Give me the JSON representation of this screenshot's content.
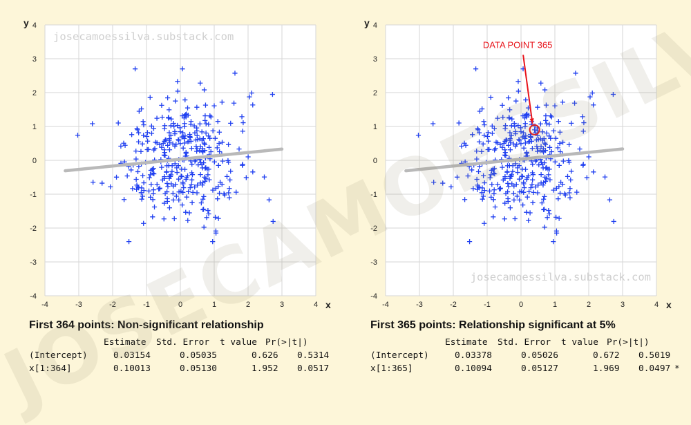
{
  "chart_data": [
    {
      "type": "scatter",
      "panel": "left",
      "title": "First 364 points: Non-significant relationship",
      "xlabel": "x",
      "ylabel": "y",
      "xlim": [
        -4,
        4
      ],
      "ylim": [
        -4,
        4
      ],
      "xticks": [
        -4,
        -3,
        -2,
        -1,
        0,
        1,
        2,
        3,
        4
      ],
      "yticks": [
        -4,
        -3,
        -2,
        -1,
        0,
        1,
        2,
        3,
        4
      ],
      "grid": true,
      "marker": "+",
      "point_color": "#1f3ff0",
      "n_points": 364,
      "watermark_text": "josecamoessilva.substack.com",
      "watermark_position": "top-left",
      "regression_line": {
        "intercept": 0.03154,
        "slope": 0.10013,
        "x_range": [
          -3.4,
          3.0
        ],
        "color": "#b9b9b9"
      },
      "regression_table": {
        "header": [
          "Estimate",
          "Std. Error",
          "t value",
          "Pr(>|t|)"
        ],
        "rows": [
          {
            "term": "(Intercept)",
            "estimate": "0.03154",
            "std_error": "0.05035",
            "t_value": "0.626",
            "p_value": "0.5314",
            "signif": ""
          },
          {
            "term": "x[1:364]",
            "estimate": "0.10013",
            "std_error": "0.05130",
            "t_value": "1.952",
            "p_value": "0.0517",
            "signif": ""
          }
        ]
      }
    },
    {
      "type": "scatter",
      "panel": "right",
      "title": "First 365 points: Relationship significant at 5%",
      "xlabel": "x",
      "ylabel": "y",
      "xlim": [
        -4,
        4
      ],
      "ylim": [
        -4,
        4
      ],
      "xticks": [
        -4,
        -3,
        -2,
        -1,
        0,
        1,
        2,
        3,
        4
      ],
      "yticks": [
        -4,
        -3,
        -2,
        -1,
        0,
        1,
        2,
        3,
        4
      ],
      "grid": true,
      "marker": "+",
      "point_color": "#1f3ff0",
      "n_points": 365,
      "watermark_text": "josecamoessilva.substack.com",
      "watermark_position": "bottom-right",
      "annotation": {
        "text": "DATA POINT 365",
        "x": 0.4,
        "y": 0.9,
        "label_x": -0.1,
        "label_y": 3.4,
        "color": "#e8141b"
      },
      "regression_line": {
        "intercept": 0.03378,
        "slope": 0.10094,
        "x_range": [
          -3.4,
          3.0
        ],
        "color": "#b9b9b9"
      },
      "regression_table": {
        "header": [
          "Estimate",
          "Std. Error",
          "t value",
          "Pr(>|t|)"
        ],
        "rows": [
          {
            "term": "(Intercept)",
            "estimate": "0.03378",
            "std_error": "0.05026",
            "t_value": "0.672",
            "p_value": "0.5019",
            "signif": ""
          },
          {
            "term": "x[1:365]",
            "estimate": "0.10094",
            "std_error": "0.05127",
            "t_value": "1.969",
            "p_value": "0.0497",
            "signif": "*"
          }
        ]
      }
    }
  ],
  "page_watermark": "JOSECAMOESSILVA"
}
